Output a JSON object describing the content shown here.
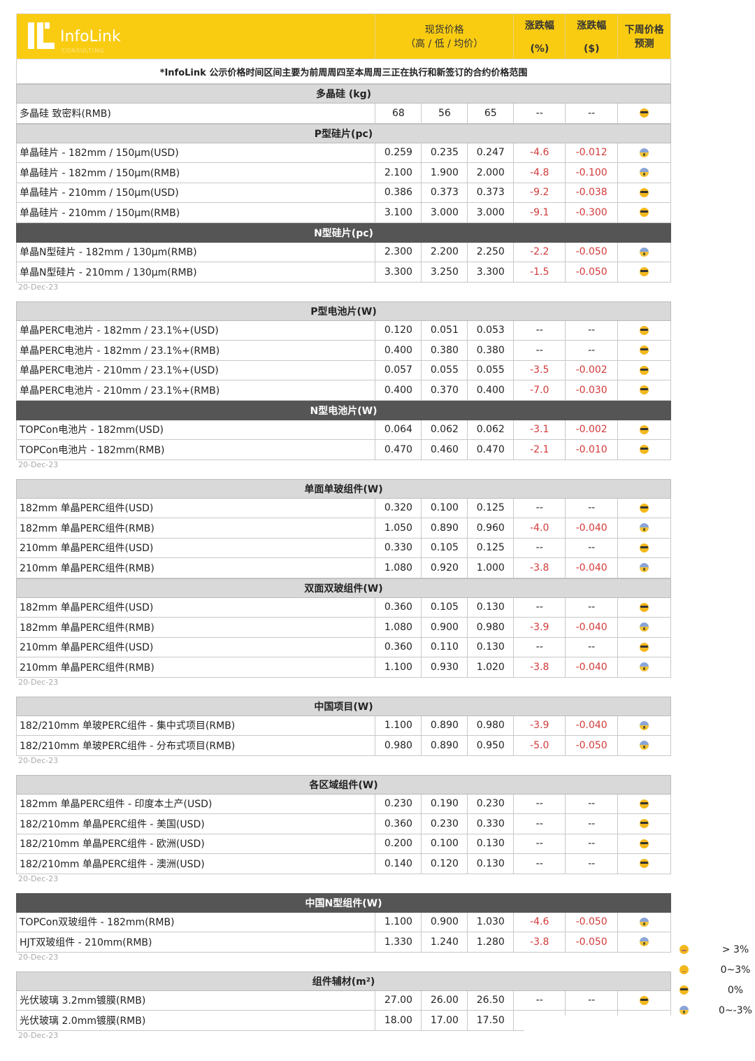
{
  "header": {
    "logo_name": "InfoLink",
    "logo_sub": "CONSULTING",
    "price_line1": "现货价格",
    "price_line2": "（高 / 低 / 均价）",
    "pct_line1": "涨跌幅",
    "pct_line2": "(%)",
    "usd_line1": "涨跌幅",
    "usd_line2": "($)",
    "forecast": "下周价格预测",
    "brand_color": "#f9cc12"
  },
  "note": "*InfoLink 公示价格时间区间主要为前周周四至本周周三正在执行和新签订的合约价格范围",
  "blocks": [
    {
      "date": "20-Dec-23",
      "sections": [
        {
          "title": "多晶硅 (kg)",
          "dark": false,
          "rows": [
            [
              "多晶硅 致密料(RMB)",
              "68",
              "56",
              "65",
              "--",
              "--",
              "cool"
            ]
          ]
        },
        {
          "title": "P型硅片(pc)",
          "dark": false,
          "rows": [
            [
              "单晶硅片 - 182mm / 150μm(USD)",
              "0.259",
              "0.235",
              "0.247",
              "-4.6",
              "-0.012",
              "scream"
            ],
            [
              "单晶硅片 - 182mm / 150μm(RMB)",
              "2.100",
              "1.900",
              "2.000",
              "-4.8",
              "-0.100",
              "scream"
            ],
            [
              "单晶硅片 - 210mm / 150μm(USD)",
              "0.386",
              "0.373",
              "0.373",
              "-9.2",
              "-0.038",
              "cool"
            ],
            [
              "单晶硅片 - 210mm / 150μm(RMB)",
              "3.100",
              "3.000",
              "3.000",
              "-9.1",
              "-0.300",
              "cool"
            ]
          ]
        },
        {
          "title": "N型硅片(pc)",
          "dark": true,
          "rows": [
            [
              "单晶N型硅片 - 182mm / 130μm(RMB)",
              "2.300",
              "2.200",
              "2.250",
              "-2.2",
              "-0.050",
              "scream"
            ],
            [
              "单晶N型硅片 - 210mm / 130μm(RMB)",
              "3.300",
              "3.250",
              "3.300",
              "-1.5",
              "-0.050",
              "cool"
            ]
          ]
        }
      ]
    },
    {
      "date": "20-Dec-23",
      "sections": [
        {
          "title": "P型电池片(W)",
          "dark": false,
          "rows": [
            [
              "单晶PERC电池片 - 182mm / 23.1%+(USD)",
              "0.120",
              "0.051",
              "0.053",
              "--",
              "--",
              "cool"
            ],
            [
              "单晶PERC电池片 - 182mm / 23.1%+(RMB)",
              "0.400",
              "0.380",
              "0.380",
              "--",
              "--",
              "cool"
            ],
            [
              "单晶PERC电池片 - 210mm / 23.1%+(USD)",
              "0.057",
              "0.055",
              "0.055",
              "-3.5",
              "-0.002",
              "cool"
            ],
            [
              "单晶PERC电池片 - 210mm / 23.1%+(RMB)",
              "0.400",
              "0.370",
              "0.400",
              "-7.0",
              "-0.030",
              "cool"
            ]
          ]
        },
        {
          "title": "N型电池片(W)",
          "dark": true,
          "rows": [
            [
              "TOPCon电池片 - 182mm(USD)",
              "0.064",
              "0.062",
              "0.062",
              "-3.1",
              "-0.002",
              "cool"
            ],
            [
              "TOPCon电池片 - 182mm(RMB)",
              "0.470",
              "0.460",
              "0.470",
              "-2.1",
              "-0.010",
              "cool"
            ]
          ]
        }
      ]
    },
    {
      "date": "20-Dec-23",
      "sections": [
        {
          "title": "单面单玻组件(W)",
          "dark": false,
          "rows": [
            [
              "182mm 单晶PERC组件(USD)",
              "0.320",
              "0.100",
              "0.125",
              "--",
              "--",
              "cool"
            ],
            [
              "182mm 单晶PERC组件(RMB)",
              "1.050",
              "0.890",
              "0.960",
              "-4.0",
              "-0.040",
              "scream"
            ],
            [
              "210mm 单晶PERC组件(USD)",
              "0.330",
              "0.105",
              "0.125",
              "--",
              "--",
              "cool"
            ],
            [
              "210mm 单晶PERC组件(RMB)",
              "1.080",
              "0.920",
              "1.000",
              "-3.8",
              "-0.040",
              "scream"
            ]
          ]
        },
        {
          "title": "双面双玻组件(W)",
          "dark": false,
          "rows": [
            [
              "182mm 单晶PERC组件(USD)",
              "0.360",
              "0.105",
              "0.130",
              "--",
              "--",
              "cool"
            ],
            [
              "182mm 单晶PERC组件(RMB)",
              "1.080",
              "0.900",
              "0.980",
              "-3.9",
              "-0.040",
              "scream"
            ],
            [
              "210mm 单晶PERC组件(USD)",
              "0.360",
              "0.110",
              "0.130",
              "--",
              "--",
              "cool"
            ],
            [
              "210mm 单晶PERC组件(RMB)",
              "1.100",
              "0.930",
              "1.020",
              "-3.8",
              "-0.040",
              "scream"
            ]
          ]
        }
      ]
    },
    {
      "date": "20-Dec-23",
      "sections": [
        {
          "title": "中国项目(W)",
          "dark": false,
          "rows": [
            [
              "182/210mm 单玻PERC组件 - 集中式项目(RMB)",
              "1.100",
              "0.890",
              "0.980",
              "-3.9",
              "-0.040",
              "scream"
            ],
            [
              "182/210mm 单玻PERC组件 - 分布式项目(RMB)",
              "0.980",
              "0.890",
              "0.950",
              "-5.0",
              "-0.050",
              "scream"
            ]
          ]
        }
      ]
    },
    {
      "date": "20-Dec-23",
      "sections": [
        {
          "title": "各区域组件(W)",
          "dark": false,
          "rows": [
            [
              "182mm 单晶PERC组件 - 印度本土产(USD)",
              "0.230",
              "0.190",
              "0.230",
              "--",
              "--",
              "cool"
            ],
            [
              "182/210mm 单晶PERC组件 - 美国(USD)",
              "0.360",
              "0.230",
              "0.330",
              "--",
              "--",
              "cool"
            ],
            [
              "182/210mm 单晶PERC组件 - 欧洲(USD)",
              "0.200",
              "0.100",
              "0.130",
              "--",
              "--",
              "cool"
            ],
            [
              "182/210mm 单晶PERC组件 - 澳洲(USD)",
              "0.140",
              "0.120",
              "0.130",
              "--",
              "--",
              "cool"
            ]
          ]
        }
      ]
    },
    {
      "date": "20-Dec-23",
      "sections": [
        {
          "title": "中国N型组件(W)",
          "dark": true,
          "rows": [
            [
              "TOPCon双玻组件 - 182mm(RMB)",
              "1.100",
              "0.900",
              "1.030",
              "-4.6",
              "-0.050",
              "scream"
            ],
            [
              "HJT双玻组件 - 210mm(RMB)",
              "1.330",
              "1.240",
              "1.280",
              "-3.8",
              "-0.050",
              "scream"
            ]
          ]
        }
      ]
    },
    {
      "date": "20-Dec-23",
      "sections": [
        {
          "title": "组件辅材(m²)",
          "dark": false,
          "rows": [
            [
              "光伏玻璃 3.2mm镀膜(RMB)",
              "27.00",
              "26.00",
              "26.50",
              "--",
              "--",
              "cool"
            ],
            [
              "光伏玻璃 2.0mm镀膜(RMB)",
              "18.00",
              "17.00",
              "17.50",
              "",
              "",
              ""
            ]
          ]
        }
      ]
    }
  ],
  "legend": [
    {
      "icon": "grin",
      "label": "> 3%"
    },
    {
      "icon": "smile",
      "label": "0~3%"
    },
    {
      "icon": "cool",
      "label": "0%"
    },
    {
      "icon": "scream",
      "label": "0~-3%"
    },
    {
      "icon": "",
      "label": "%"
    }
  ],
  "colors": {
    "negative": "#d23a3a",
    "section_light": "#d9d9d9",
    "section_dark": "#555555"
  }
}
